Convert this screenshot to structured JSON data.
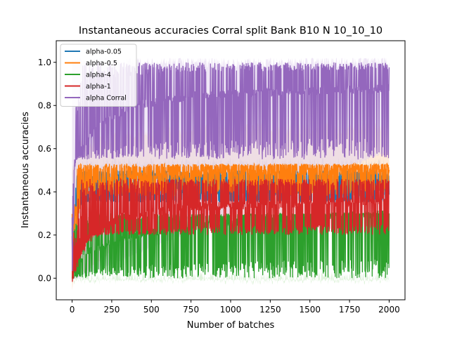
{
  "chart_data": {
    "type": "line",
    "title": "Instantaneous accuracies Corral split Bank B10 N 10_10_10",
    "xlabel": "Number of batches",
    "ylabel": "Instantaneous accuracies",
    "xlim": [
      -100,
      2100
    ],
    "ylim": [
      -0.1,
      1.1
    ],
    "x_ticks": [
      0,
      250,
      500,
      750,
      1000,
      1250,
      1500,
      1750,
      2000
    ],
    "y_ticks": [
      0.0,
      0.2,
      0.4,
      0.6,
      0.8,
      1.0
    ],
    "x_tick_labels": [
      "0",
      "250",
      "500",
      "750",
      "1000",
      "1250",
      "1500",
      "1750",
      "2000"
    ],
    "y_tick_labels": [
      "0.0",
      "0.2",
      "0.4",
      "0.6",
      "0.8",
      "1.0"
    ],
    "grid": false,
    "legend_position": "upper left",
    "x_range": [
      0,
      2000
    ],
    "series": [
      {
        "name": "alpha-0.05",
        "color": "#1f77b4",
        "profile": [
          [
            0,
            0.0
          ],
          [
            30,
            0.3
          ],
          [
            80,
            0.38
          ],
          [
            150,
            0.39
          ],
          [
            500,
            0.4
          ],
          [
            2000,
            0.4
          ]
        ],
        "upper": 0.5,
        "lower": 0.35,
        "band": [
          [
            0,
            0.0,
            0.5
          ],
          [
            70,
            0.42,
            0.53
          ],
          [
            2000,
            0.45,
            0.53
          ]
        ],
        "band_color": "#aec7e8"
      },
      {
        "name": "alpha-0.5",
        "color": "#ff7f0e",
        "profile": [
          [
            0,
            0.0
          ],
          [
            60,
            0.43
          ],
          [
            400,
            0.47
          ],
          [
            1000,
            0.49
          ],
          [
            2000,
            0.5
          ]
        ],
        "upper": 0.53,
        "lower": 0.38,
        "band": [
          [
            0,
            -0.05,
            0.5
          ],
          [
            60,
            0.3,
            0.62
          ],
          [
            500,
            0.45,
            0.68
          ],
          [
            2000,
            0.45,
            0.7
          ]
        ],
        "band_color": "#ffd9b8"
      },
      {
        "name": "alpha-4",
        "color": "#2ca02c",
        "profile": [
          [
            0,
            0.0
          ],
          [
            80,
            0.12
          ],
          [
            400,
            0.2
          ],
          [
            800,
            0.25
          ],
          [
            2000,
            0.3
          ]
        ],
        "upper": 0.3,
        "lower": 0.0,
        "band": [
          [
            0,
            0.0,
            0.0
          ],
          [
            2000,
            0.0,
            0.0
          ]
        ],
        "band_color": "#c7e9c0"
      },
      {
        "name": "alpha-1",
        "color": "#d62728",
        "profile": [
          [
            0,
            0.0
          ],
          [
            100,
            0.18
          ],
          [
            300,
            0.28
          ],
          [
            700,
            0.33
          ],
          [
            2000,
            0.36
          ]
        ],
        "upper": 0.46,
        "lower": 0.2,
        "band": [
          [
            0,
            0.0,
            0.1
          ],
          [
            100,
            0.05,
            0.35
          ],
          [
            500,
            0.28,
            0.45
          ],
          [
            2000,
            0.3,
            0.48
          ]
        ],
        "band_color": "#e6b0b0"
      },
      {
        "name": "alpha Corral",
        "color": "#9467bd",
        "profile": [
          [
            0,
            0.0
          ],
          [
            20,
            0.55
          ],
          [
            150,
            0.7
          ],
          [
            400,
            0.8
          ],
          [
            800,
            0.85
          ],
          [
            2000,
            0.88
          ]
        ],
        "upper": 1.0,
        "lower": 0.55,
        "band": [
          [
            0,
            0.0,
            1.0
          ],
          [
            2000,
            0.6,
            1.0
          ]
        ],
        "band_color": "#e2d3ee"
      }
    ]
  }
}
